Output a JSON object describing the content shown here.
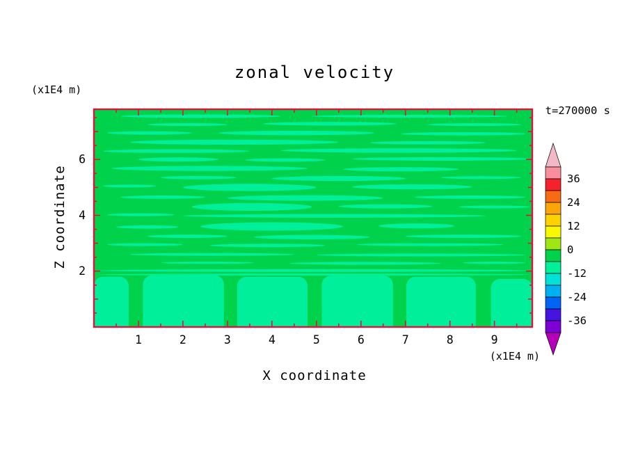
{
  "chart_data": {
    "type": "contour",
    "title": "zonal velocity",
    "xlabel": "X coordinate",
    "zlabel": "Z coordinate",
    "x_unit": "(x1E4 m)",
    "z_unit": "(x1E4 m)",
    "time_label": "t=270000 s",
    "x_ticks": [
      1,
      2,
      3,
      4,
      5,
      6,
      7,
      8,
      9
    ],
    "z_ticks": [
      2,
      4,
      6
    ],
    "x_range": [
      0,
      9.85
    ],
    "z_range": [
      0,
      7.8
    ],
    "grid": false,
    "legend_position": "right-colorbar",
    "colors": {
      "axis": "#dc143c",
      "time_label": "#b22222",
      "text": "#000000",
      "background": "#ffffff"
    },
    "colorbar": {
      "labels": [
        36,
        24,
        12,
        0,
        -12,
        -24,
        -36
      ],
      "levels": [
        42,
        36,
        30,
        24,
        18,
        12,
        6,
        0,
        -6,
        -12,
        -18,
        -24,
        -30,
        -36,
        -42
      ],
      "contour_interval": 6,
      "above_color": "#f2b8c6",
      "below_color": "#b400b9",
      "colors_top_to_bottom": [
        "#f98e9e",
        "#f5212b",
        "#f96a14",
        "#fba50a",
        "#fdd200",
        "#f8f800",
        "#a0e614",
        "#00d24b",
        "#00ef9b",
        "#00e2d8",
        "#00b0f0",
        "#0064f5",
        "#4614e1",
        "#7d00d7"
      ]
    },
    "field": {
      "background_color": "#00d24b",
      "streak_color": "#00ef9b",
      "streaks": [
        [
          2.4,
          7.55,
          3.6,
          0.12
        ],
        [
          7.1,
          7.55,
          4.4,
          0.1
        ],
        [
          2.1,
          7.25,
          1.8,
          0.1
        ],
        [
          5.3,
          7.28,
          3.0,
          0.13
        ],
        [
          8.55,
          7.25,
          2.1,
          0.1
        ],
        [
          1.25,
          6.95,
          1.9,
          0.12
        ],
        [
          4.55,
          6.95,
          3.5,
          0.16
        ],
        [
          8.3,
          6.92,
          2.8,
          0.12
        ],
        [
          3.15,
          6.62,
          4.7,
          0.18
        ],
        [
          7.5,
          6.6,
          2.6,
          0.12
        ],
        [
          1.85,
          6.3,
          3.3,
          0.13
        ],
        [
          6.85,
          6.32,
          5.3,
          0.16
        ],
        [
          1.9,
          6.0,
          1.8,
          0.15
        ],
        [
          4.3,
          5.98,
          1.8,
          0.12
        ],
        [
          7.8,
          6.02,
          4.0,
          0.13
        ],
        [
          2.6,
          5.68,
          4.4,
          0.18
        ],
        [
          6.9,
          5.65,
          2.6,
          0.15
        ],
        [
          2.35,
          5.35,
          1.7,
          0.12
        ],
        [
          5.5,
          5.32,
          3.0,
          0.18
        ],
        [
          8.7,
          5.35,
          1.8,
          0.1
        ],
        [
          0.8,
          5.05,
          1.2,
          0.1
        ],
        [
          3.5,
          5.0,
          3.0,
          0.26
        ],
        [
          7.15,
          5.02,
          2.7,
          0.18
        ],
        [
          1.55,
          4.65,
          1.9,
          0.12
        ],
        [
          4.75,
          4.62,
          3.5,
          0.2
        ],
        [
          8.45,
          4.65,
          2.5,
          0.12
        ],
        [
          3.55,
          4.3,
          2.7,
          0.28
        ],
        [
          6.55,
          4.32,
          2.1,
          0.15
        ],
        [
          9.0,
          4.3,
          1.6,
          0.1
        ],
        [
          1.05,
          4.02,
          1.5,
          0.1
        ],
        [
          5.4,
          3.98,
          6.8,
          0.13
        ],
        [
          4.0,
          3.6,
          3.2,
          0.3
        ],
        [
          7.25,
          3.62,
          1.7,
          0.18
        ],
        [
          1.2,
          3.58,
          1.4,
          0.12
        ],
        [
          2.1,
          3.25,
          1.8,
          0.12
        ],
        [
          4.9,
          3.22,
          2.6,
          0.16
        ],
        [
          8.3,
          3.25,
          2.6,
          0.12
        ],
        [
          1.15,
          2.95,
          1.7,
          0.1
        ],
        [
          3.9,
          2.92,
          2.6,
          0.12
        ],
        [
          7.55,
          2.95,
          3.3,
          0.1
        ],
        [
          2.65,
          2.6,
          3.7,
          0.1
        ],
        [
          7.35,
          2.58,
          4.7,
          0.1
        ],
        [
          2.55,
          2.3,
          2.1,
          0.08
        ],
        [
          6.1,
          2.28,
          3.4,
          0.1
        ],
        [
          9.0,
          2.3,
          1.4,
          0.08
        ],
        [
          4.95,
          2.02,
          9.7,
          0.1
        ],
        [
          4.95,
          1.88,
          9.7,
          0.07
        ]
      ],
      "bottom_cells": [
        [
          0.0,
          0.78,
          1.8
        ],
        [
          1.1,
          2.92,
          1.85
        ],
        [
          3.22,
          4.8,
          1.8
        ],
        [
          5.12,
          6.72,
          1.84
        ],
        [
          7.02,
          8.58,
          1.8
        ],
        [
          8.92,
          9.85,
          1.72
        ]
      ]
    }
  }
}
